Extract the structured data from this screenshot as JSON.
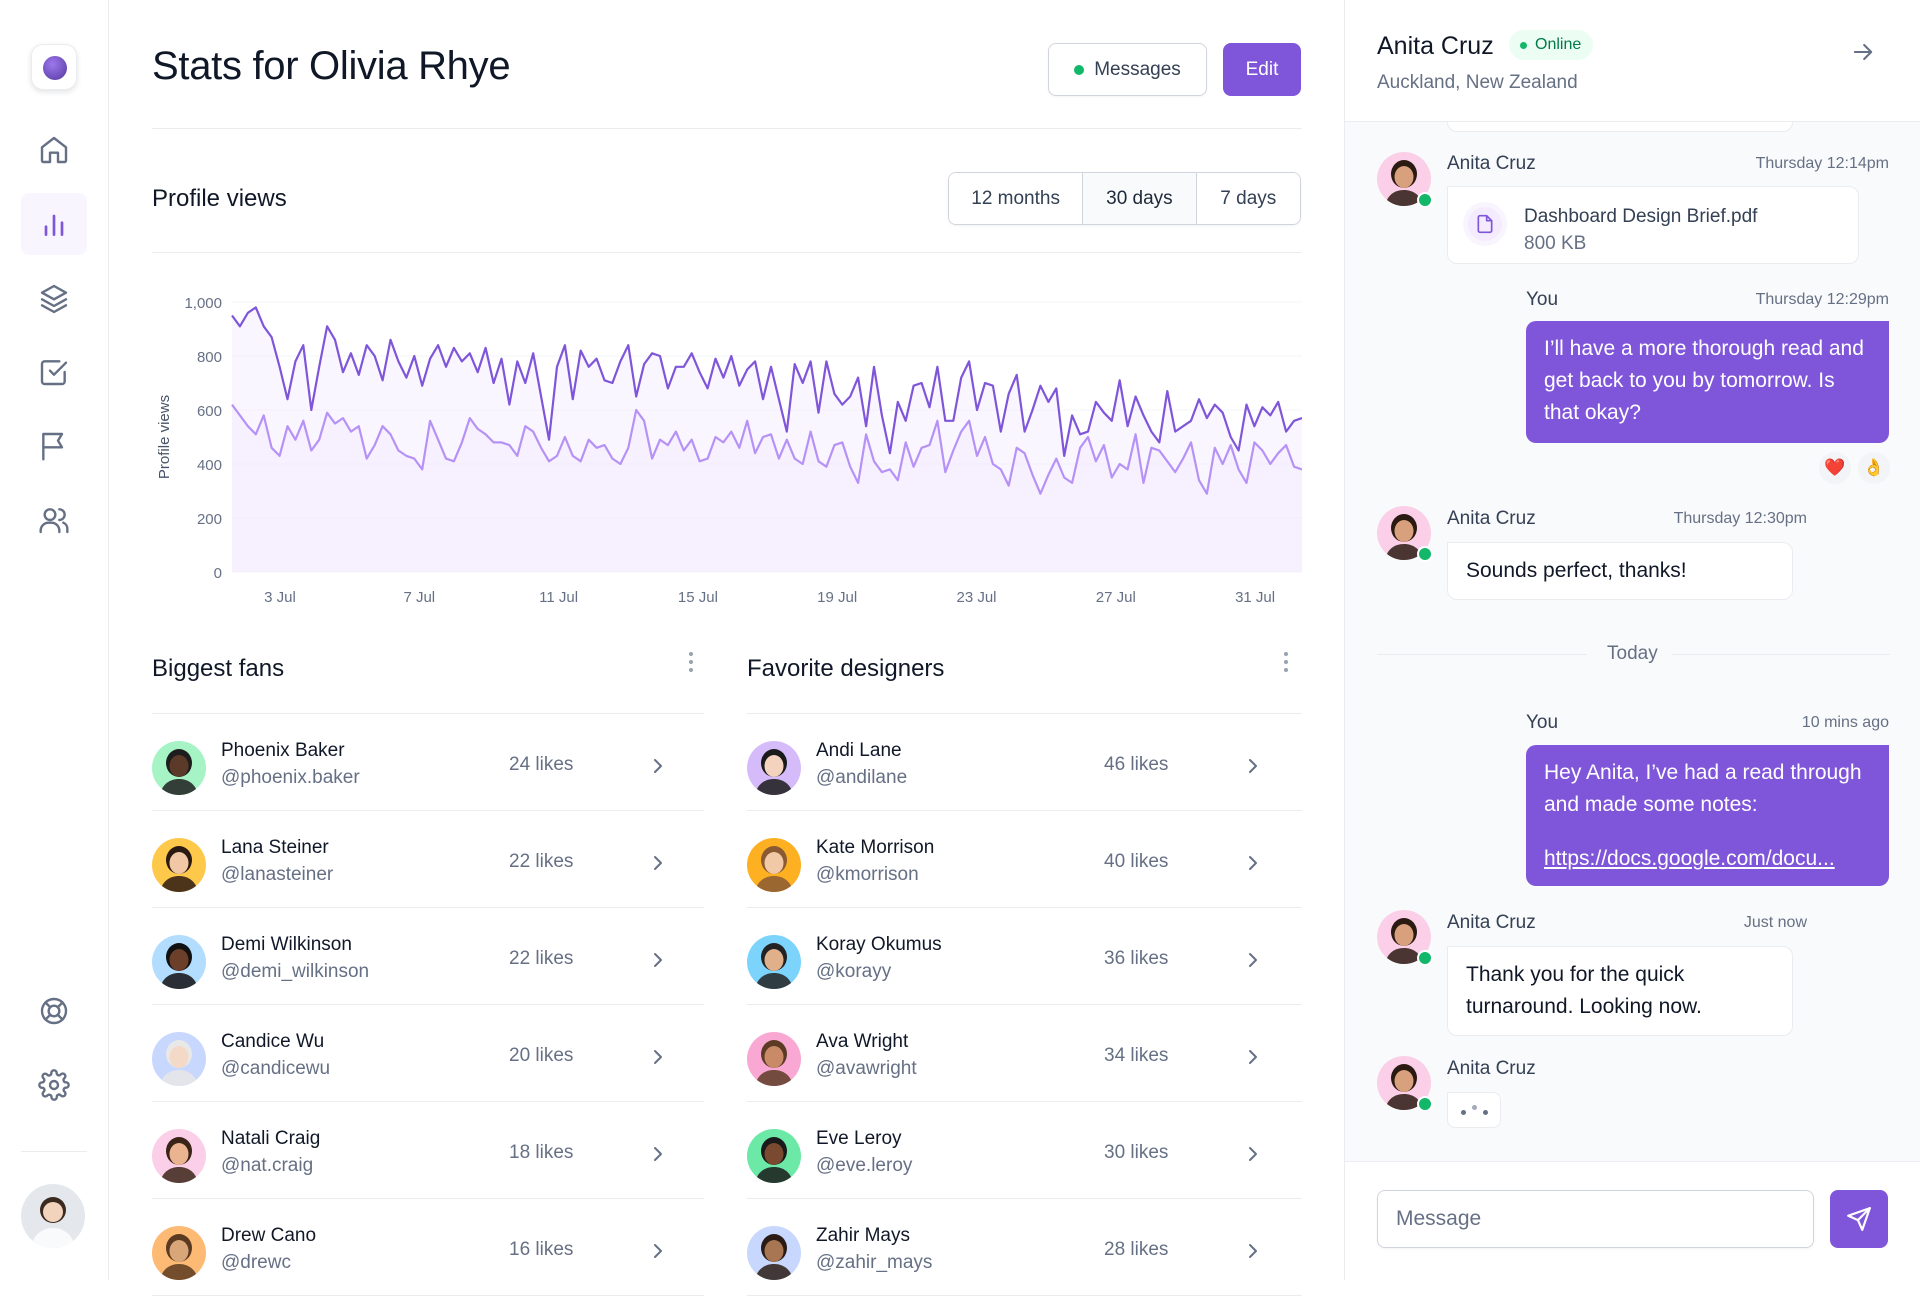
{
  "page": {
    "title": "Stats for Olivia Rhye",
    "messages_label": "Messages",
    "edit_label": "Edit"
  },
  "sidebar": {
    "items": [
      {
        "name": "home",
        "icon": "home-icon"
      },
      {
        "name": "stats",
        "icon": "bar-chart-icon",
        "active": true
      },
      {
        "name": "layers",
        "icon": "layers-icon"
      },
      {
        "name": "tasks",
        "icon": "check-square-icon"
      },
      {
        "name": "reports",
        "icon": "flag-icon"
      },
      {
        "name": "users",
        "icon": "users-icon"
      }
    ],
    "footer_items": [
      {
        "name": "support",
        "icon": "life-buoy-icon"
      },
      {
        "name": "settings",
        "icon": "gear-icon"
      }
    ]
  },
  "profile_views": {
    "title": "Profile views",
    "ranges": [
      "12 months",
      "30 days",
      "7 days"
    ],
    "active_range": "30 days"
  },
  "chart_data": {
    "type": "area",
    "title": "Profile views",
    "ylabel": "Profile views",
    "xlabel": "",
    "ylim": [
      0,
      1000
    ],
    "yticks": [
      0,
      200,
      400,
      600,
      800,
      1000
    ],
    "ytick_labels": [
      "0",
      "200",
      "400",
      "600",
      "800",
      "1,000"
    ],
    "xtick_labels": [
      "3 Jul",
      "7 Jul",
      "11 Jul",
      "15 Jul",
      "19 Jul",
      "23 Jul",
      "27 Jul",
      "31 Jul"
    ],
    "grid": true,
    "colors": {
      "primary": "#7f56d9",
      "secondary": "#b692f6",
      "fill": "#f4ebff"
    },
    "series": [
      {
        "values": [
          950,
          910,
          960,
          980,
          910,
          870,
          760,
          640,
          780,
          840,
          600,
          760,
          910,
          860,
          740,
          810,
          730,
          840,
          800,
          710,
          860,
          780,
          720,
          800,
          690,
          790,
          840,
          760,
          830,
          780,
          810,
          740,
          830,
          700,
          790,
          620,
          780,
          700,
          810,
          650,
          490,
          760,
          840,
          640,
          820,
          760,
          790,
          710,
          700,
          780,
          840,
          650,
          770,
          810,
          800,
          680,
          760,
          760,
          810,
          740,
          680,
          790,
          720,
          800,
          690,
          750,
          780,
          640,
          760,
          640,
          520,
          770,
          700,
          780,
          590,
          780,
          660,
          620,
          650,
          720,
          540,
          760,
          580,
          440,
          630,
          560,
          690,
          700,
          610,
          760,
          560,
          560,
          720,
          780,
          600,
          700,
          690,
          520,
          660,
          730,
          520,
          600,
          690,
          630,
          680,
          430,
          580,
          510,
          520,
          630,
          590,
          560,
          710,
          540,
          650,
          580,
          520,
          480,
          670,
          520,
          540,
          560,
          640,
          570,
          620,
          590,
          500,
          450,
          620,
          540,
          610,
          580,
          630,
          520,
          560,
          570
        ]
      },
      {
        "values": [
          620,
          580,
          540,
          510,
          580,
          460,
          430,
          540,
          490,
          560,
          450,
          490,
          590,
          550,
          570,
          520,
          540,
          420,
          470,
          540,
          510,
          450,
          430,
          420,
          380,
          560,
          490,
          420,
          410,
          480,
          570,
          530,
          510,
          480,
          480,
          470,
          430,
          540,
          520,
          460,
          410,
          430,
          500,
          430,
          410,
          490,
          460,
          470,
          420,
          400,
          460,
          600,
          560,
          420,
          490,
          470,
          520,
          450,
          490,
          410,
          420,
          500,
          480,
          520,
          460,
          560,
          440,
          500,
          510,
          420,
          490,
          420,
          400,
          520,
          410,
          390,
          470,
          480,
          390,
          330,
          510,
          410,
          370,
          380,
          340,
          480,
          390,
          460,
          470,
          560,
          370,
          450,
          520,
          560,
          430,
          500,
          400,
          380,
          320,
          460,
          440,
          360,
          290,
          360,
          420,
          350,
          330,
          460,
          500,
          410,
          470,
          350,
          400,
          380,
          510,
          330,
          460,
          450,
          410,
          370,
          420,
          480,
          340,
          290,
          460,
          400,
          470,
          380,
          330,
          480,
          450,
          400,
          440,
          470,
          390,
          380
        ]
      }
    ]
  },
  "biggest_fans": {
    "title": "Biggest fans",
    "people": [
      {
        "name": "Phoenix Baker",
        "handle": "@phoenix.baker",
        "likes": "24 likes",
        "bg": "#a6f4c5",
        "skin": "#5b3a29",
        "hair": "#1d1d1d"
      },
      {
        "name": "Lana Steiner",
        "handle": "@lanasteiner",
        "likes": "22 likes",
        "bg": "#fec84b",
        "skin": "#f1c7a5",
        "hair": "#2b1a12"
      },
      {
        "name": "Demi Wilkinson",
        "handle": "@demi_wilkinson",
        "likes": "22 likes",
        "bg": "#b2ddff",
        "skin": "#6b3f2a",
        "hair": "#111111"
      },
      {
        "name": "Candice Wu",
        "handle": "@candicewu",
        "likes": "20 likes",
        "bg": "#c7d7fe",
        "skin": "#f4d9c6",
        "hair": "#e8e8e8"
      },
      {
        "name": "Natali Craig",
        "handle": "@nat.craig",
        "likes": "18 likes",
        "bg": "#fbcfe8",
        "skin": "#e9b48f",
        "hair": "#3a2418"
      },
      {
        "name": "Drew Cano",
        "handle": "@drewc",
        "likes": "16 likes",
        "bg": "#fdba74",
        "skin": "#d9a67a",
        "hair": "#5a3a20"
      }
    ]
  },
  "favorite_designers": {
    "title": "Favorite designers",
    "people": [
      {
        "name": "Andi Lane",
        "handle": "@andilane",
        "likes": "46 likes",
        "bg": "#d6bbfb",
        "skin": "#f3d3bd",
        "hair": "#1a1a1a"
      },
      {
        "name": "Kate Morrison",
        "handle": "@kmorrison",
        "likes": "40 likes",
        "bg": "#fdb022",
        "skin": "#f2c9a6",
        "hair": "#8a5a34"
      },
      {
        "name": "Koray Okumus",
        "handle": "@korayy",
        "likes": "36 likes",
        "bg": "#7cd4fd",
        "skin": "#e0b08b",
        "hair": "#222222"
      },
      {
        "name": "Ava Wright",
        "handle": "@avawright",
        "likes": "34 likes",
        "bg": "#f9a8d4",
        "skin": "#c98a68",
        "hair": "#5c3b24"
      },
      {
        "name": "Eve Leroy",
        "handle": "@eve.leroy",
        "likes": "30 likes",
        "bg": "#6ce9a6",
        "skin": "#7a4a30",
        "hair": "#1a1a1a"
      },
      {
        "name": "Zahir Mays",
        "handle": "@zahir_mays",
        "likes": "28 likes",
        "bg": "#c7d7fe",
        "skin": "#a97654",
        "hair": "#2a1c14"
      }
    ]
  },
  "chat": {
    "name": "Anita Cruz",
    "status": "Online",
    "location": "Auckland, New Zealand",
    "today_label": "Today",
    "input_placeholder": "Message",
    "file": {
      "name": "Dashboard Design Brief.pdf",
      "size": "800 KB"
    },
    "messages": [
      {
        "sender": "Anita Cruz",
        "time": "Thursday 12:14pm"
      },
      {
        "sender": "You",
        "time": "Thursday 12:29pm",
        "text": "I’ll have a more thorough read and get back to you by tomorrow. Is that okay?"
      },
      {
        "sender": "Anita Cruz",
        "time": "Thursday 12:30pm",
        "text": "Sounds perfect, thanks!"
      },
      {
        "sender": "You",
        "time": "10 mins ago",
        "text": "Hey Anita, I’ve had a read through and made some notes:",
        "link": "https://docs.google.com/docu..."
      },
      {
        "sender": "Anita Cruz",
        "time": "Just now",
        "text": "Thank you for the quick turnaround. Looking now."
      },
      {
        "sender": "Anita Cruz"
      }
    ],
    "reactions": [
      "❤️",
      "👌"
    ],
    "colors": {
      "accent": "#7f56d9",
      "online": "#12b76a"
    }
  }
}
